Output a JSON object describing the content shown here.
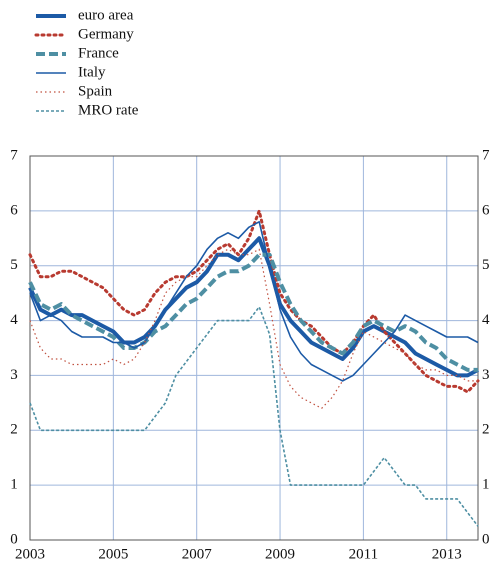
{
  "chart_data": {
    "type": "line",
    "x": [
      2003,
      2003.25,
      2003.5,
      2003.75,
      2004,
      2004.25,
      2004.5,
      2004.75,
      2005,
      2005.25,
      2005.5,
      2005.75,
      2006,
      2006.25,
      2006.5,
      2006.75,
      2007,
      2007.25,
      2007.5,
      2007.75,
      2008,
      2008.25,
      2008.5,
      2008.75,
      2009,
      2009.25,
      2009.5,
      2009.75,
      2010,
      2010.25,
      2010.5,
      2010.75,
      2011,
      2011.25,
      2011.5,
      2011.75,
      2012,
      2012.25,
      2012.5,
      2012.75,
      2013,
      2013.25,
      2013.5,
      2013.75
    ],
    "xlim": [
      2003,
      2013.75
    ],
    "xticks": [
      2003,
      2005,
      2007,
      2009,
      2011,
      2013
    ],
    "ylim": [
      0,
      7
    ],
    "yticks": [
      0,
      1,
      2,
      3,
      4,
      5,
      6,
      7
    ],
    "grid": true,
    "legend": "top-left",
    "series": [
      {
        "name": "euro area",
        "color": "#1c5aa6",
        "width": 4,
        "dash": "solid",
        "values": [
          4.6,
          4.2,
          4.1,
          4.2,
          4.1,
          4.1,
          4.0,
          3.9,
          3.8,
          3.6,
          3.6,
          3.7,
          3.9,
          4.2,
          4.4,
          4.6,
          4.7,
          4.9,
          5.2,
          5.2,
          5.1,
          5.3,
          5.5,
          5.0,
          4.3,
          4.0,
          3.8,
          3.6,
          3.5,
          3.4,
          3.3,
          3.5,
          3.8,
          3.9,
          3.8,
          3.7,
          3.6,
          3.4,
          3.3,
          3.2,
          3.1,
          3.0,
          3.0,
          3.1
        ]
      },
      {
        "name": "Germany",
        "color": "#b83a30",
        "width": 3,
        "dash": "dotted",
        "values": [
          5.2,
          4.8,
          4.8,
          4.9,
          4.9,
          4.8,
          4.7,
          4.6,
          4.4,
          4.2,
          4.1,
          4.2,
          4.5,
          4.7,
          4.8,
          4.8,
          4.9,
          5.1,
          5.3,
          5.4,
          5.2,
          5.5,
          6.0,
          5.2,
          4.5,
          4.2,
          4.0,
          3.9,
          3.7,
          3.5,
          3.4,
          3.6,
          3.9,
          4.1,
          3.8,
          3.6,
          3.4,
          3.2,
          3.0,
          2.9,
          2.8,
          2.8,
          2.7,
          2.9
        ]
      },
      {
        "name": "France",
        "color": "#4e8fa3",
        "width": 4,
        "dash": "dashed",
        "values": [
          4.7,
          4.3,
          4.2,
          4.3,
          4.1,
          4.0,
          3.9,
          3.8,
          3.7,
          3.5,
          3.5,
          3.6,
          3.8,
          3.9,
          4.1,
          4.3,
          4.4,
          4.6,
          4.8,
          4.9,
          4.9,
          5.0,
          5.2,
          5.2,
          4.7,
          4.3,
          4.0,
          3.8,
          3.6,
          3.5,
          3.4,
          3.6,
          3.9,
          4.0,
          3.9,
          3.8,
          3.9,
          3.8,
          3.6,
          3.5,
          3.3,
          3.2,
          3.1,
          3.1
        ]
      },
      {
        "name": "Italy",
        "color": "#1c5aa6",
        "width": 1.6,
        "dash": "solid",
        "values": [
          4.5,
          4.0,
          4.1,
          4.0,
          3.8,
          3.7,
          3.7,
          3.7,
          3.6,
          3.6,
          3.5,
          3.6,
          3.9,
          4.2,
          4.5,
          4.8,
          5.0,
          5.3,
          5.5,
          5.6,
          5.5,
          5.7,
          5.8,
          5.0,
          4.2,
          3.7,
          3.4,
          3.2,
          3.1,
          3.0,
          2.9,
          3.0,
          3.2,
          3.4,
          3.6,
          3.8,
          4.1,
          4.0,
          3.9,
          3.8,
          3.7,
          3.7,
          3.7,
          3.6
        ]
      },
      {
        "name": "Spain",
        "color": "#c0503f",
        "width": 1.2,
        "dash": "fine-dotted",
        "values": [
          4.0,
          3.5,
          3.3,
          3.3,
          3.2,
          3.2,
          3.2,
          3.2,
          3.3,
          3.2,
          3.3,
          3.6,
          4.0,
          4.5,
          4.7,
          4.8,
          4.8,
          5.0,
          5.2,
          5.3,
          5.2,
          5.2,
          5.3,
          4.3,
          3.2,
          2.8,
          2.6,
          2.5,
          2.4,
          2.6,
          2.9,
          3.4,
          3.8,
          3.7,
          3.6,
          3.5,
          3.4,
          3.2,
          3.1,
          3.1,
          3.0,
          3.0,
          2.9,
          2.9
        ]
      },
      {
        "name": "MRO rate",
        "color": "#4e8fa3",
        "width": 1.6,
        "dash": "short-dashed",
        "values": [
          2.5,
          2.0,
          2.0,
          2.0,
          2.0,
          2.0,
          2.0,
          2.0,
          2.0,
          2.0,
          2.0,
          2.0,
          2.25,
          2.5,
          3.0,
          3.25,
          3.5,
          3.75,
          4.0,
          4.0,
          4.0,
          4.0,
          4.25,
          3.75,
          2.0,
          1.0,
          1.0,
          1.0,
          1.0,
          1.0,
          1.0,
          1.0,
          1.0,
          1.25,
          1.5,
          1.25,
          1.0,
          1.0,
          0.75,
          0.75,
          0.75,
          0.75,
          0.5,
          0.25
        ]
      }
    ]
  }
}
